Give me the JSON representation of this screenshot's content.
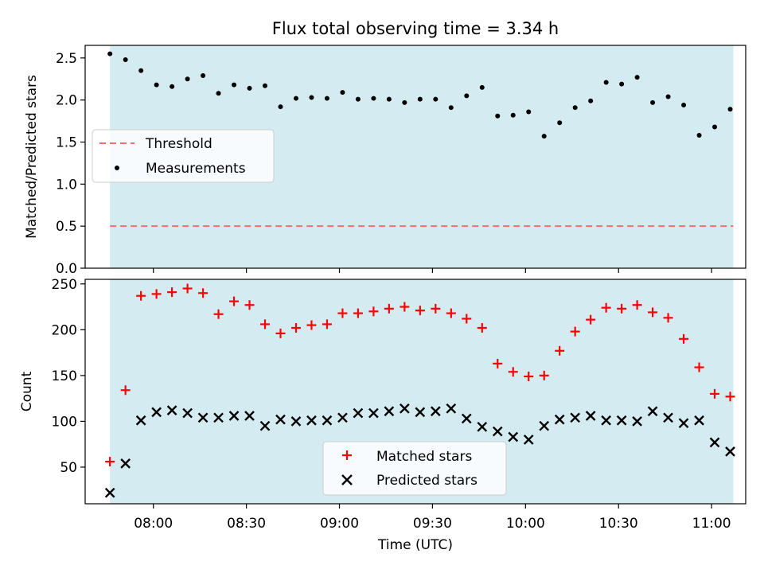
{
  "chart_data": [
    {
      "type": "scatter",
      "title": "Flux total observing time = 3.34 h",
      "xlabel": "",
      "ylabel": "Matched/Predicted stars",
      "ylim": [
        0,
        2.65
      ],
      "yticks": [
        "0.0",
        "0.5",
        "1.0",
        "1.5",
        "2.0",
        "2.5"
      ],
      "grid": false,
      "legend_position": "center-left",
      "shaded_span": [
        "07:46",
        "11:07"
      ],
      "shade_color": "#add8e6",
      "threshold": {
        "name": "Threshold",
        "value": 0.5,
        "color": "#f06f6f",
        "style": "dashed"
      },
      "series": [
        {
          "name": "Measurements",
          "marker": "dot",
          "color": "#000000",
          "x": [
            "07:46",
            "07:51",
            "07:56",
            "08:01",
            "08:06",
            "08:11",
            "08:16",
            "08:21",
            "08:26",
            "08:31",
            "08:36",
            "08:41",
            "08:46",
            "08:51",
            "08:56",
            "09:01",
            "09:06",
            "09:11",
            "09:16",
            "09:21",
            "09:26",
            "09:31",
            "09:36",
            "09:41",
            "09:46",
            "09:51",
            "09:56",
            "10:01",
            "10:06",
            "10:11",
            "10:16",
            "10:21",
            "10:26",
            "10:31",
            "10:36",
            "10:41",
            "10:46",
            "10:51",
            "10:56",
            "11:01",
            "11:06"
          ],
          "y": [
            2.55,
            2.48,
            2.35,
            2.18,
            2.16,
            2.25,
            2.29,
            2.08,
            2.18,
            2.14,
            2.17,
            1.92,
            2.02,
            2.03,
            2.02,
            2.09,
            2.01,
            2.02,
            2.01,
            1.97,
            2.01,
            2.01,
            1.91,
            2.05,
            2.15,
            1.81,
            1.82,
            1.86,
            1.57,
            1.73,
            1.91,
            1.99,
            2.21,
            2.19,
            2.27,
            1.97,
            2.04,
            1.94,
            1.58,
            1.68,
            1.89
          ]
        }
      ]
    },
    {
      "type": "scatter",
      "title": "",
      "xlabel": "Time (UTC)",
      "ylabel": "Count",
      "ylim": [
        10,
        255
      ],
      "yticks": [
        "50",
        "100",
        "150",
        "200",
        "250"
      ],
      "xticks": [
        "08:00",
        "08:30",
        "09:00",
        "09:30",
        "10:00",
        "10:30",
        "11:00"
      ],
      "xlim": [
        "07:38",
        "11:11"
      ],
      "grid": false,
      "legend_position": "bottom-center",
      "shaded_span": [
        "07:46",
        "11:07"
      ],
      "shade_color": "#add8e6",
      "series": [
        {
          "name": "Matched stars",
          "marker": "plus",
          "color": "#ff0000",
          "x": [
            "07:46",
            "07:51",
            "07:56",
            "08:01",
            "08:06",
            "08:11",
            "08:16",
            "08:21",
            "08:26",
            "08:31",
            "08:36",
            "08:41",
            "08:46",
            "08:51",
            "08:56",
            "09:01",
            "09:06",
            "09:11",
            "09:16",
            "09:21",
            "09:26",
            "09:31",
            "09:36",
            "09:41",
            "09:46",
            "09:51",
            "09:56",
            "10:01",
            "10:06",
            "10:11",
            "10:16",
            "10:21",
            "10:26",
            "10:31",
            "10:36",
            "10:41",
            "10:46",
            "10:51",
            "10:56",
            "11:01",
            "11:06"
          ],
          "y": [
            56,
            134,
            237,
            239,
            241,
            245,
            240,
            217,
            231,
            227,
            206,
            196,
            202,
            205,
            206,
            218,
            218,
            220,
            223,
            225,
            221,
            223,
            218,
            212,
            202,
            163,
            154,
            149,
            150,
            177,
            198,
            211,
            224,
            223,
            227,
            219,
            213,
            190,
            159,
            130,
            127
          ]
        },
        {
          "name": "Predicted stars",
          "marker": "x",
          "color": "#000000",
          "x": [
            "07:46",
            "07:51",
            "07:56",
            "08:01",
            "08:06",
            "08:11",
            "08:16",
            "08:21",
            "08:26",
            "08:31",
            "08:36",
            "08:41",
            "08:46",
            "08:51",
            "08:56",
            "09:01",
            "09:06",
            "09:11",
            "09:16",
            "09:21",
            "09:26",
            "09:31",
            "09:36",
            "09:41",
            "09:46",
            "09:51",
            "09:56",
            "10:01",
            "10:06",
            "10:11",
            "10:16",
            "10:21",
            "10:26",
            "10:31",
            "10:36",
            "10:41",
            "10:46",
            "10:51",
            "10:56",
            "11:01",
            "11:06"
          ],
          "y": [
            22,
            54,
            101,
            110,
            112,
            109,
            104,
            104,
            106,
            106,
            95,
            102,
            100,
            101,
            101,
            104,
            109,
            109,
            111,
            114,
            110,
            111,
            114,
            103,
            94,
            89,
            83,
            80,
            95,
            102,
            104,
            106,
            101,
            101,
            100,
            111,
            104,
            98,
            101,
            77,
            67
          ]
        }
      ]
    }
  ]
}
